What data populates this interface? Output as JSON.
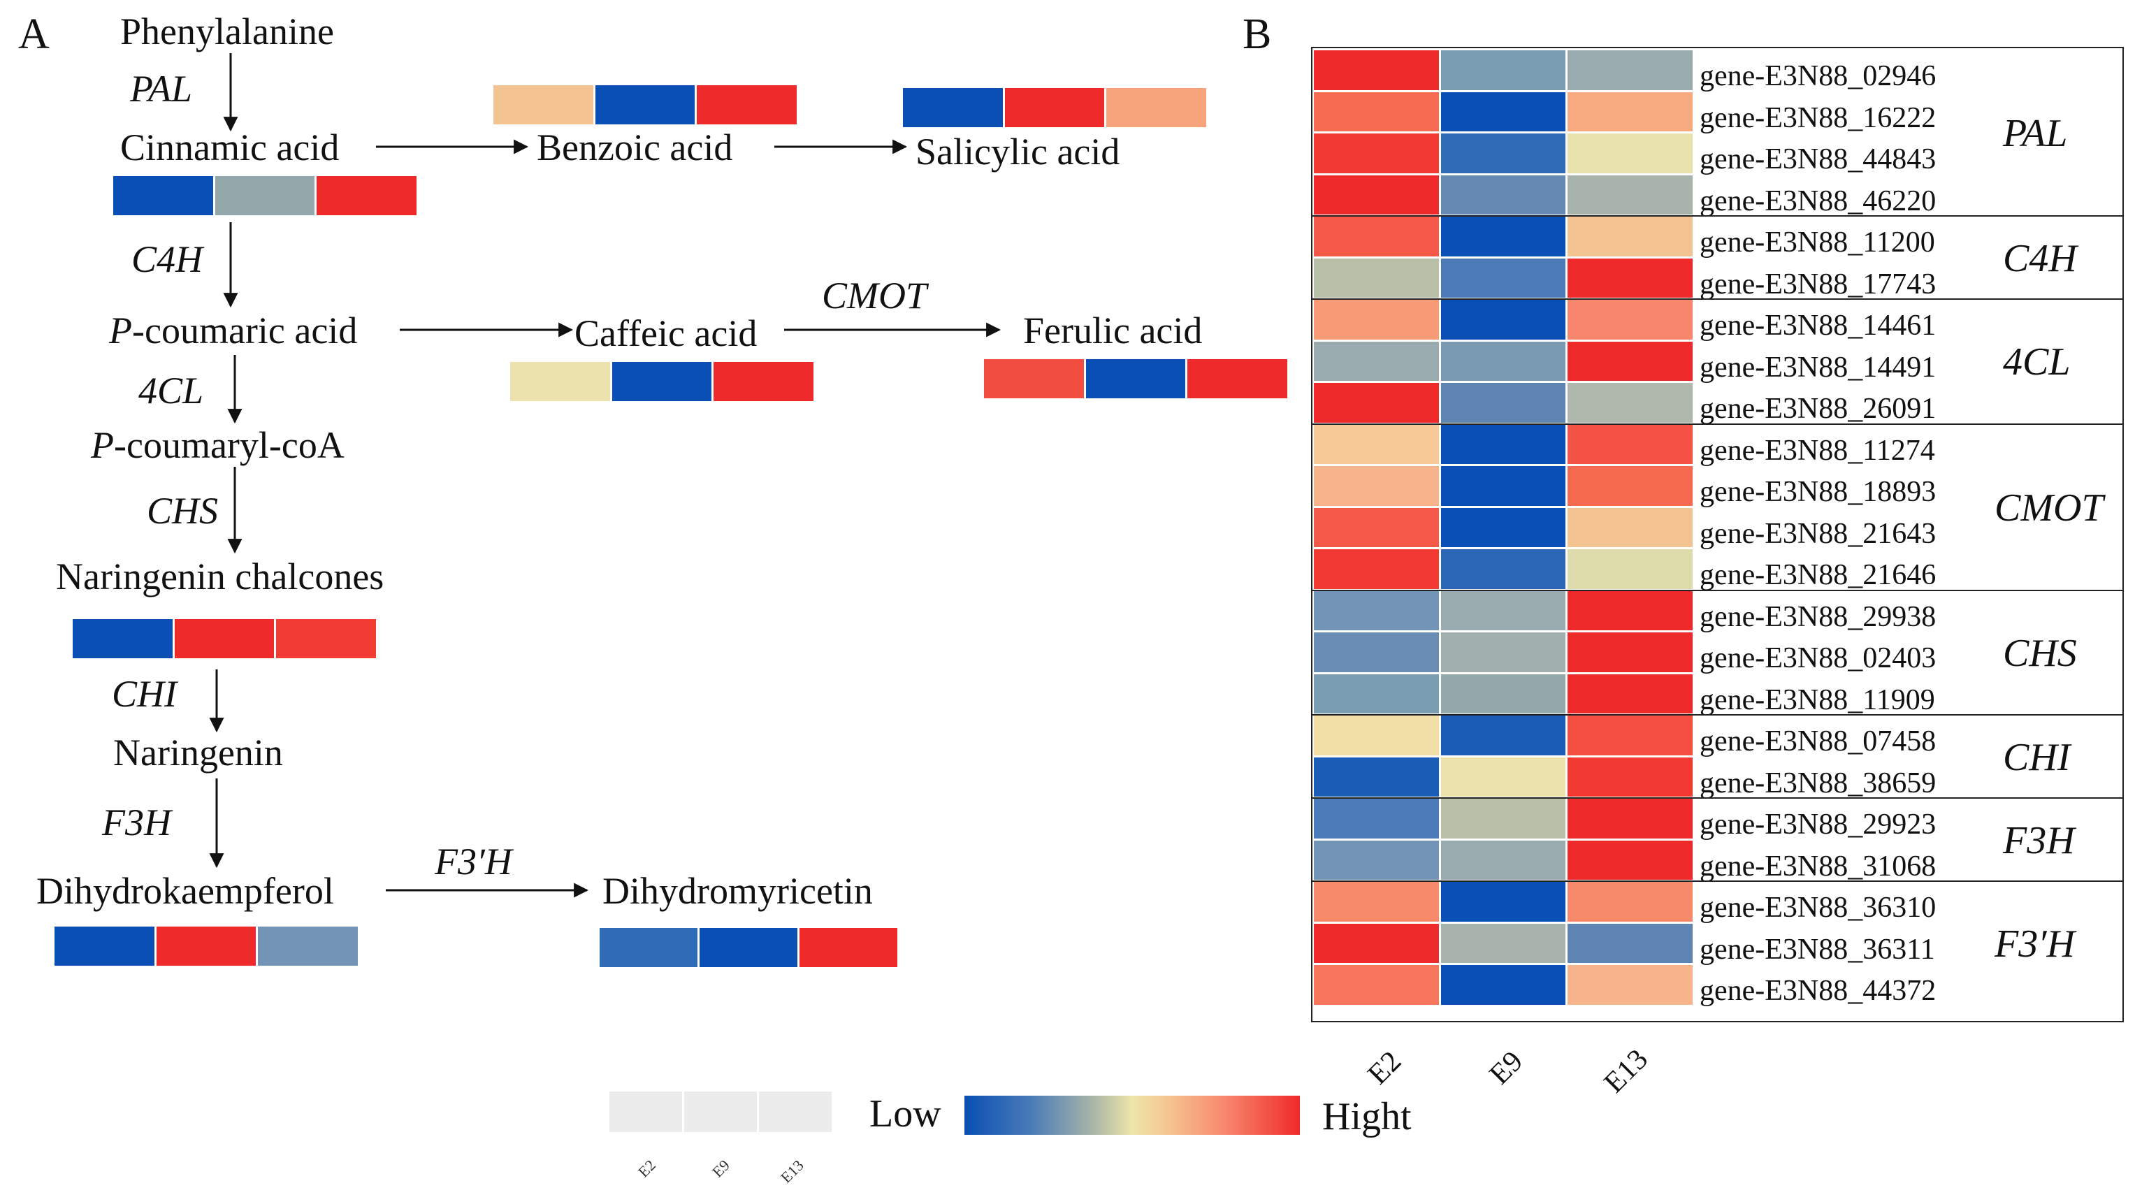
{
  "panel_a": {
    "label": "A",
    "metabolites": {
      "phenylalanine": "Phenylalanine",
      "cinnamic_acid": "Cinnamic acid",
      "benzoic_acid": "Benzoic acid",
      "salicylic_acid": "Salicylic acid",
      "p_coumaric_prefix": "P",
      "p_coumaric_rest": "-coumaric acid",
      "caffeic_acid": "Caffeic acid",
      "ferulic_acid": "Ferulic acid",
      "p_coumaryl_prefix": "P",
      "p_coumaryl_rest": "-coumaryl-coA",
      "naringenin_chalcones": "Naringenin chalcones",
      "naringenin": "Naringenin",
      "dihydrokaempferol": "Dihydrokaempferol",
      "dihydromyricetin": "Dihydromyricetin"
    },
    "enzymes": {
      "pal": "PAL",
      "c4h": "C4H",
      "fourcl": "4CL",
      "chs": "CHS",
      "chi": "CHI",
      "f3h": "F3H",
      "cmot": "CMOT",
      "f3prime_h": "F3′H"
    },
    "strips": {
      "cinnamic_acid": [
        "#0a4fb5",
        "#93a8ab",
        "#ef2a2a"
      ],
      "benzoic_acid": [
        "#f4c392",
        "#0a4fb5",
        "#ef2a2a"
      ],
      "salicylic_acid": [
        "#0a4fb5",
        "#ef2a2a",
        "#f7a47d"
      ],
      "caffeic_acid": [
        "#ece2ac",
        "#0a4fb5",
        "#ef2a2a"
      ],
      "ferulic_acid": [
        "#f24e3f",
        "#0a4fb5",
        "#ef2a2a"
      ],
      "naringenin_chalcones": [
        "#0a4fb5",
        "#ef2a2a",
        "#f23c33"
      ],
      "dihydrokaempferol": [
        "#0a4fb5",
        "#ef2a2a",
        "#7294b6"
      ],
      "dihydromyricetin": [
        "#2f6bb7",
        "#0a4fb5",
        "#ef2a2a"
      ]
    }
  },
  "panel_b": {
    "label": "B",
    "columns": [
      "E2",
      "E9",
      "E13"
    ],
    "groups": [
      {
        "family": "PAL",
        "genes": [
          {
            "id": "gene-E3N88_02946",
            "colors": [
              "#ef2a2a",
              "#7b9db2",
              "#9aabaf"
            ]
          },
          {
            "id": "gene-E3N88_16222",
            "colors": [
              "#f76b52",
              "#0a4fb5",
              "#f7aa80"
            ]
          },
          {
            "id": "gene-E3N88_44843",
            "colors": [
              "#f23a33",
              "#2f6bb7",
              "#e8e3ae"
            ]
          },
          {
            "id": "gene-E3N88_46220",
            "colors": [
              "#ef2a2a",
              "#6689b4",
              "#a8b4ab"
            ]
          }
        ]
      },
      {
        "family": "C4H",
        "genes": [
          {
            "id": "gene-E3N88_11200",
            "colors": [
              "#f5594a",
              "#0a4fb5",
              "#f4c392"
            ]
          },
          {
            "id": "gene-E3N88_17743",
            "colors": [
              "#b8c0a8",
              "#4a7bb8",
              "#ef2a2a"
            ]
          }
        ]
      },
      {
        "family": "4CL",
        "genes": [
          {
            "id": "gene-E3N88_14461",
            "colors": [
              "#f89a76",
              "#0a4fb5",
              "#f7866c"
            ]
          },
          {
            "id": "gene-E3N88_14491",
            "colors": [
              "#9aabaf",
              "#7a9ab4",
              "#ef2a2a"
            ]
          },
          {
            "id": "gene-E3N88_26091",
            "colors": [
              "#ef2a2a",
              "#5e84b4",
              "#b0b8ae"
            ]
          }
        ]
      },
      {
        "family": "CMOT",
        "genes": [
          {
            "id": "gene-E3N88_11274",
            "colors": [
              "#f6c997",
              "#0a4fb5",
              "#f45346"
            ]
          },
          {
            "id": "gene-E3N88_18893",
            "colors": [
              "#f7b48a",
              "#0a4fb5",
              "#f5694f"
            ]
          },
          {
            "id": "gene-E3N88_21643",
            "colors": [
              "#f5594a",
              "#0a4fb5",
              "#f4c392"
            ]
          },
          {
            "id": "gene-E3N88_21646",
            "colors": [
              "#f23a33",
              "#2a65b6",
              "#dddcaa"
            ]
          }
        ]
      },
      {
        "family": "CHS",
        "genes": [
          {
            "id": "gene-E3N88_29938",
            "colors": [
              "#7294b6",
              "#9aabaf",
              "#ef2a2a"
            ]
          },
          {
            "id": "gene-E3N88_02403",
            "colors": [
              "#6a8db6",
              "#a2b0ad",
              "#ef2a2a"
            ]
          },
          {
            "id": "gene-E3N88_11909",
            "colors": [
              "#7b9db2",
              "#93a8ab",
              "#ef2a2a"
            ]
          }
        ]
      },
      {
        "family": "CHI",
        "genes": [
          {
            "id": "gene-E3N88_07458",
            "colors": [
              "#f0dea5",
              "#1b5db6",
              "#f34e40"
            ]
          },
          {
            "id": "gene-E3N88_38659",
            "colors": [
              "#1b5db6",
              "#ece2ac",
              "#f23a33"
            ]
          }
        ]
      },
      {
        "family": "F3H",
        "genes": [
          {
            "id": "gene-E3N88_29923",
            "colors": [
              "#4a7bb8",
              "#b8c0a8",
              "#ef2a2a"
            ]
          },
          {
            "id": "gene-E3N88_31068",
            "colors": [
              "#7294b6",
              "#9aabaf",
              "#ef2a2a"
            ]
          }
        ]
      },
      {
        "family": "F3′H",
        "genes": [
          {
            "id": "gene-E3N88_36310",
            "colors": [
              "#f88a6c",
              "#0a4fb5",
              "#f88a6c"
            ]
          },
          {
            "id": "gene-E3N88_36311",
            "colors": [
              "#ef2a2a",
              "#a8b4ab",
              "#5e84b4"
            ]
          },
          {
            "id": "gene-E3N88_44372",
            "colors": [
              "#f7765c",
              "#0a4fb5",
              "#f7b48a"
            ]
          }
        ]
      }
    ]
  },
  "legend": {
    "low_label": "Low",
    "high_label": "Hight",
    "key_labels": [
      "E2",
      "E9",
      "E13"
    ],
    "gradient_colors": [
      "#0a4fb5",
      "#ece6a8",
      "#ef2a2a"
    ]
  }
}
